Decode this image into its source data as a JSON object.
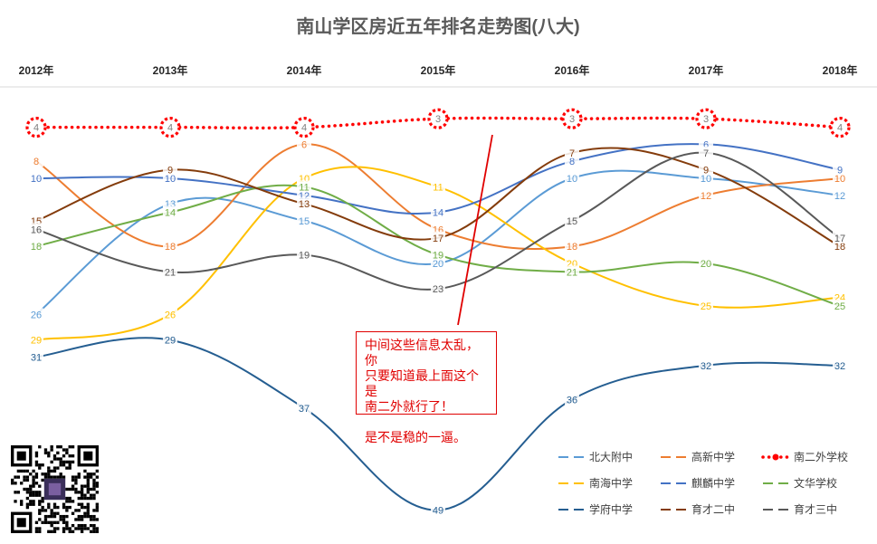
{
  "chart_data": {
    "type": "line",
    "title": "南山学区房近五年排名走势图(八大)",
    "categories": [
      "2012年",
      "2013年",
      "2014年",
      "2015年",
      "2016年",
      "2017年",
      "2018年"
    ],
    "y_axis_inverted": true,
    "ylim": [
      1,
      52
    ],
    "grid": false,
    "legend_position": "bottom-right",
    "series": [
      {
        "name": "北大附中",
        "color": "#5b9bd5",
        "dash": "solid",
        "values": [
          26,
          13,
          15,
          20,
          10,
          10,
          12
        ]
      },
      {
        "name": "高新中学",
        "color": "#ed7d31",
        "dash": "solid",
        "values": [
          8,
          18,
          6,
          16,
          18,
          12,
          10
        ]
      },
      {
        "name": "南二外学校",
        "color": "#ff0000",
        "dash": "dotted",
        "marker": "dashed-circle",
        "values": [
          4,
          4,
          4,
          3,
          3,
          3,
          4
        ]
      },
      {
        "name": "南海中学",
        "color": "#ffc000",
        "dash": "solid",
        "values": [
          29,
          26,
          10,
          11,
          20,
          25,
          24
        ]
      },
      {
        "name": "麒麟中学",
        "color": "#4472c4",
        "dash": "solid",
        "values": [
          10,
          10,
          12,
          14,
          8,
          6,
          9
        ]
      },
      {
        "name": "文华学校",
        "color": "#70ad47",
        "dash": "solid",
        "values": [
          18,
          14,
          11,
          19,
          21,
          20,
          25
        ]
      },
      {
        "name": "学府中学",
        "color": "#255e91",
        "dash": "solid",
        "values": [
          31,
          29,
          37,
          49,
          36,
          32,
          32
        ]
      },
      {
        "name": "育才二中",
        "color": "#843c0c",
        "dash": "solid",
        "values": [
          15,
          9,
          13,
          17,
          7,
          9,
          18
        ]
      },
      {
        "name": "育才三中",
        "color": "#595959",
        "dash": "solid",
        "values": [
          16,
          21,
          19,
          23,
          15,
          7,
          17
        ]
      }
    ],
    "annotation": {
      "lines": [
        "中间这些信息太乱，你",
        "只要知道最上面这个是",
        "南二外就行了！",
        "",
        "是不是稳的一逼。"
      ],
      "color": "#e00000"
    }
  }
}
